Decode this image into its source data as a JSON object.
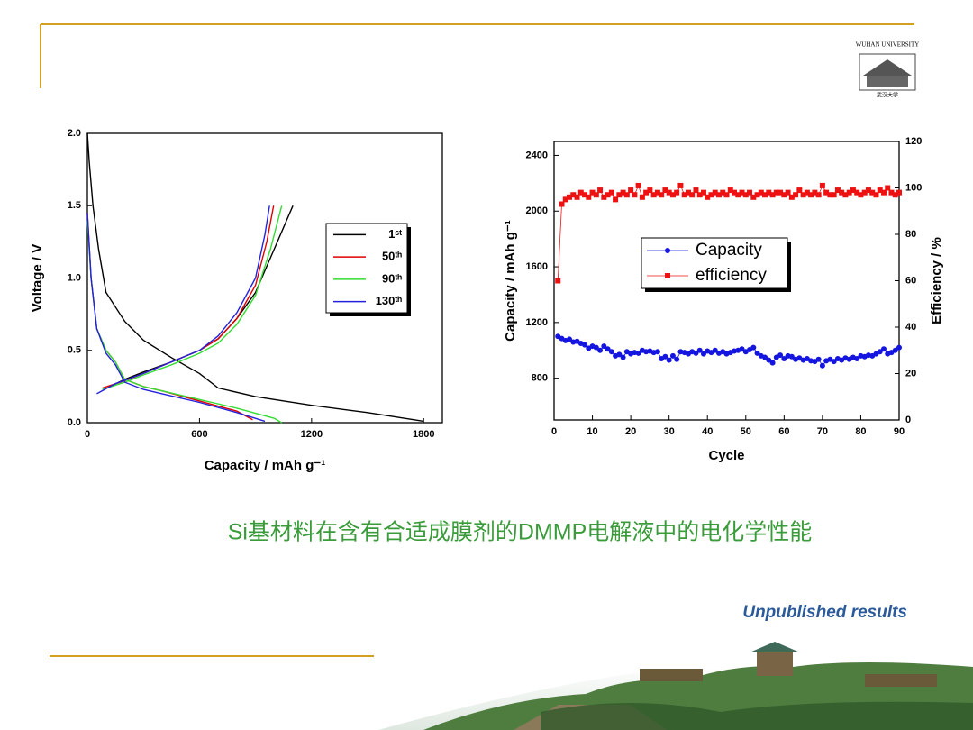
{
  "caption": "Si基材料在含有合适成膜剂的DMMP电解液中的电化学性能",
  "note": "Unpublished results",
  "logo": {
    "text": "WUHAN UNIVERSITY",
    "name": "武汉大学"
  },
  "chart_data": [
    {
      "type": "line",
      "x_label": "Capacity / mAh g⁻¹",
      "y_label": "Voltage / V",
      "xlim": [
        0,
        1900
      ],
      "xticks": [
        0,
        600,
        1200,
        1800
      ],
      "ylim": [
        0,
        2
      ],
      "yticks": [
        {
          "value": 0,
          "label": "0.0"
        },
        {
          "value": 0.5,
          "label": "0.5"
        },
        {
          "value": 1,
          "label": "1.0"
        },
        {
          "value": 1.5,
          "label": "1.5"
        },
        {
          "value": 2,
          "label": "2.0"
        }
      ],
      "series": [
        {
          "name": "1ˢᵗ",
          "color": "#000000",
          "x": [
            0,
            10,
            30,
            60,
            100,
            200,
            300,
            450,
            600,
            700,
            900,
            1200,
            1500,
            1800,
            null,
            120,
            200,
            300,
            450,
            600,
            700,
            800,
            900,
            1000,
            1100
          ],
          "values": [
            2.0,
            1.8,
            1.5,
            1.2,
            0.9,
            0.7,
            0.57,
            0.45,
            0.34,
            0.24,
            0.18,
            0.12,
            0.07,
            0.01,
            null,
            0.25,
            0.3,
            0.35,
            0.42,
            0.5,
            0.58,
            0.72,
            0.9,
            1.2,
            1.5
          ]
        },
        {
          "name": "50ᵗʰ",
          "color": "#e00000",
          "x": [
            0,
            20,
            50,
            100,
            150,
            200,
            300,
            400,
            600,
            800,
            885,
            null,
            80,
            200,
            300,
            450,
            600,
            700,
            800,
            900,
            960,
            997
          ],
          "values": [
            1.45,
            1.0,
            0.65,
            0.5,
            0.42,
            0.3,
            0.25,
            0.22,
            0.15,
            0.08,
            0.02,
            null,
            0.24,
            0.29,
            0.34,
            0.42,
            0.5,
            0.58,
            0.72,
            0.95,
            1.25,
            1.5
          ]
        },
        {
          "name": "90ᵗʰ",
          "color": "#33dd33",
          "x": [
            0,
            20,
            50,
            100,
            150,
            200,
            300,
            400,
            600,
            800,
            1000,
            1040,
            null,
            80,
            200,
            300,
            450,
            600,
            700,
            800,
            900,
            980,
            1040
          ],
          "values": [
            1.4,
            1.0,
            0.65,
            0.5,
            0.42,
            0.3,
            0.25,
            0.22,
            0.16,
            0.1,
            0.03,
            0.0,
            null,
            0.23,
            0.28,
            0.33,
            0.4,
            0.48,
            0.55,
            0.68,
            0.88,
            1.2,
            1.5
          ]
        },
        {
          "name": "130ᵗʰ",
          "color": "#2222dd",
          "x": [
            0,
            20,
            50,
            100,
            150,
            200,
            300,
            400,
            600,
            800,
            950,
            null,
            50,
            150,
            300,
            450,
            600,
            700,
            800,
            900,
            950,
            975
          ],
          "values": [
            1.45,
            1.0,
            0.65,
            0.48,
            0.4,
            0.28,
            0.23,
            0.2,
            0.14,
            0.07,
            0.01,
            null,
            0.2,
            0.27,
            0.34,
            0.42,
            0.5,
            0.6,
            0.76,
            1.0,
            1.3,
            1.5
          ]
        }
      ]
    },
    {
      "type": "line",
      "x_label": "Cycle",
      "y_label": "Capacity / mAh g⁻¹",
      "y2_label": "Efficiency / %",
      "xlim": [
        0,
        90
      ],
      "xticks": [
        0,
        10,
        20,
        30,
        40,
        50,
        60,
        70,
        80,
        90
      ],
      "ylim": [
        500,
        2500
      ],
      "yticks": [
        800,
        1200,
        1600,
        2000,
        2400
      ],
      "y2lim": [
        0,
        120
      ],
      "y2ticks": [
        0,
        20,
        40,
        60,
        80,
        100,
        120
      ],
      "x": [
        1,
        2,
        3,
        4,
        5,
        6,
        7,
        8,
        9,
        10,
        11,
        12,
        13,
        14,
        15,
        16,
        17,
        18,
        19,
        20,
        21,
        22,
        23,
        24,
        25,
        26,
        27,
        28,
        29,
        30,
        31,
        32,
        33,
        34,
        35,
        36,
        37,
        38,
        39,
        40,
        41,
        42,
        43,
        44,
        45,
        46,
        47,
        48,
        49,
        50,
        51,
        52,
        53,
        54,
        55,
        56,
        57,
        58,
        59,
        60,
        61,
        62,
        63,
        64,
        65,
        66,
        67,
        68,
        69,
        70,
        71,
        72,
        73,
        74,
        75,
        76,
        77,
        78,
        79,
        80,
        81,
        82,
        83,
        84,
        85,
        86,
        87,
        88,
        89,
        90
      ],
      "series": [
        {
          "name": "Capacity",
          "color": "#1515e0",
          "marker": "circle",
          "values": [
            1100,
            1085,
            1070,
            1080,
            1060,
            1065,
            1050,
            1040,
            1015,
            1030,
            1020,
            1000,
            1030,
            1010,
            990,
            960,
            970,
            950,
            990,
            975,
            985,
            980,
            1000,
            990,
            995,
            985,
            990,
            940,
            955,
            930,
            960,
            935,
            990,
            985,
            975,
            990,
            980,
            1000,
            975,
            995,
            985,
            1000,
            980,
            990,
            975,
            985,
            995,
            1000,
            1010,
            990,
            1005,
            1020,
            980,
            960,
            950,
            930,
            910,
            950,
            965,
            940,
            960,
            955,
            935,
            945,
            930,
            940,
            925,
            920,
            935,
            890,
            925,
            935,
            920,
            940,
            930,
            945,
            935,
            950,
            940,
            960,
            955,
            965,
            960,
            975,
            990,
            1010,
            975,
            985,
            1000,
            1020
          ]
        },
        {
          "name": "efficiency",
          "color": "#ee1111",
          "marker": "square",
          "axis": "y2",
          "values": [
            60,
            93,
            95,
            96,
            97,
            96,
            98,
            97,
            96,
            98,
            97,
            99,
            96,
            97,
            98,
            95,
            97,
            98,
            97,
            99,
            97,
            101,
            96,
            98,
            99,
            97,
            98,
            97,
            99,
            98,
            97,
            98,
            101,
            97,
            98,
            97,
            99,
            97,
            98,
            96,
            97,
            98,
            97,
            98,
            97,
            99,
            98,
            97,
            98,
            97,
            98,
            96,
            97,
            98,
            97,
            98,
            97,
            98,
            98,
            97,
            98,
            96,
            97,
            99,
            97,
            98,
            97,
            98,
            97,
            101,
            98,
            97,
            97,
            99,
            98,
            97,
            98,
            99,
            98,
            97,
            98,
            99,
            98,
            97,
            99,
            98,
            100,
            98,
            97,
            98
          ]
        }
      ]
    }
  ]
}
